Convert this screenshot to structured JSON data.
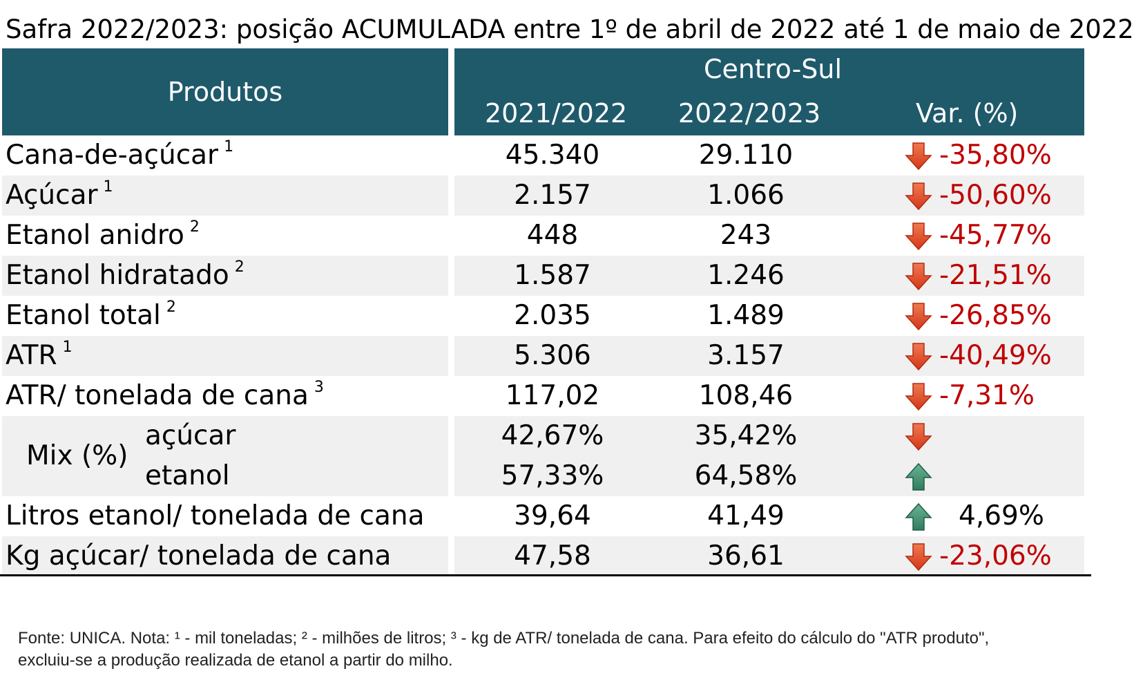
{
  "title": "Safra 2022/2023: posição ACUMULADA entre 1º de abril de 2022 até 1 de maio de 2022",
  "header": {
    "products": "Produtos",
    "region": "Centro-Sul",
    "year1": "2021/2022",
    "year2": "2022/2023",
    "var": "Var. (%)"
  },
  "rows": [
    {
      "label": "Cana-de-açúcar",
      "note": "1",
      "v1": "45.340",
      "v2": "29.110",
      "var": "-35,80%",
      "trend": "down"
    },
    {
      "label": "Açúcar",
      "note": "1",
      "v1": "2.157",
      "v2": "1.066",
      "var": "-50,60%",
      "trend": "down"
    },
    {
      "label": "Etanol anidro",
      "note": "2",
      "v1": "448",
      "v2": "243",
      "var": "-45,77%",
      "trend": "down"
    },
    {
      "label": "Etanol hidratado",
      "note": "2",
      "v1": "1.587",
      "v2": "1.246",
      "var": "-21,51%",
      "trend": "down"
    },
    {
      "label": "Etanol total",
      "note": "2",
      "v1": "2.035",
      "v2": "1.489",
      "var": "-26,85%",
      "trend": "down"
    },
    {
      "label": "ATR",
      "note": "1",
      "v1": "5.306",
      "v2": "3.157",
      "var": "-40,49%",
      "trend": "down"
    },
    {
      "label": "ATR/ tonelada de cana",
      "note": "3",
      "v1": "117,02",
      "v2": "108,46",
      "var": "-7,31%",
      "trend": "down"
    }
  ],
  "mix": {
    "label": "Mix (%)",
    "sugar": {
      "label": "açúcar",
      "v1": "42,67%",
      "v2": "35,42%",
      "trend": "down"
    },
    "ethanol": {
      "label": "etanol",
      "v1": "57,33%",
      "v2": "64,58%",
      "trend": "up"
    }
  },
  "rows_bottom": [
    {
      "label": "Litros etanol/ tonelada de cana",
      "v1": "39,64",
      "v2": "41,49",
      "var": "4,69%",
      "trend": "up"
    },
    {
      "label": "Kg açúcar/ tonelada de cana",
      "v1": "47,58",
      "v2": "36,61",
      "var": "-23,06%",
      "trend": "down"
    }
  ],
  "source_line1": "Fonte: UNICA. Nota: ¹ - mil toneladas; ² - milhões de litros; ³ - kg de ATR/ tonelada de cana. Para efeito do cálculo do \"ATR produto\",",
  "source_line2": "excluiu-se a produção realizada de etanol a partir do milho.",
  "colors": {
    "header_bg": "#1f5a6b",
    "down_arrow": "#e2401f",
    "up_arrow": "#3f8f6f",
    "negative_text": "#c00000"
  }
}
